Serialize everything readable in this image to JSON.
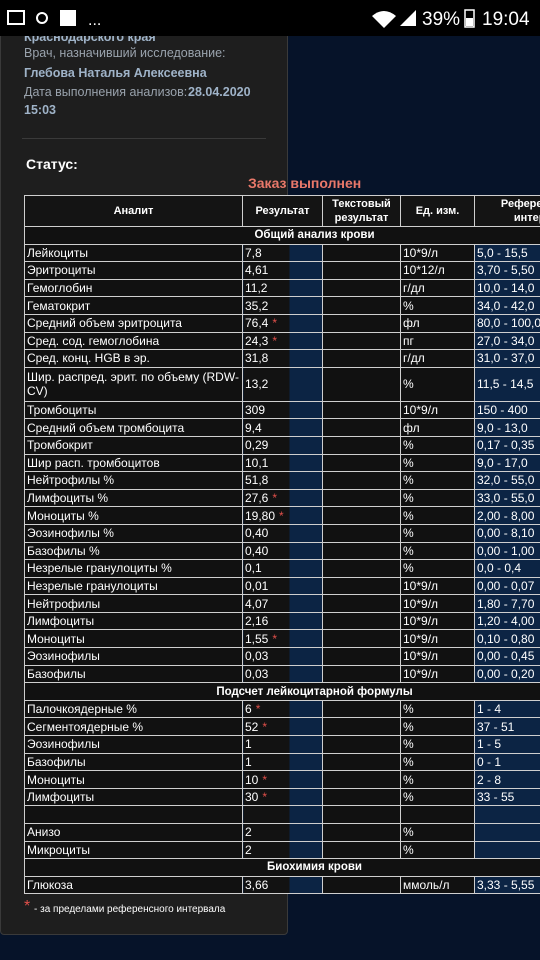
{
  "status_bar": {
    "battery": "39%",
    "time": "19:04"
  },
  "header": {
    "region": "Краснодарского края",
    "doctor_label": "Врач, назначивший исследование:",
    "doctor_name": "Глебова Наталья Алексеевна",
    "date_label": "Дата выполнения анализов:",
    "date_value": "28.04.2020",
    "time_value": "15:03"
  },
  "status": {
    "label": "Статус:",
    "value": "Заказ выполнен"
  },
  "table": {
    "headers": [
      "Аналит",
      "Результат",
      "Текстовый результат",
      "Ед. изм.",
      "Референсный интервал"
    ],
    "sections": [
      {
        "title": "Общий анализ крови",
        "rows": [
          {
            "name": "Лейкоциты",
            "result": "7,8",
            "unit": "10*9/л",
            "ref": "5,0 - 15,5"
          },
          {
            "name": "Эритроциты",
            "result": "4,61",
            "unit": "10*12/л",
            "ref": "3,70 - 5,50"
          },
          {
            "name": "Гемоглобин",
            "result": "11,2",
            "unit": "г/дл",
            "ref": "10,0 - 14,0"
          },
          {
            "name": "Гематокрит",
            "result": "35,2",
            "unit": "%",
            "ref": "34,0 - 42,0"
          },
          {
            "name": "Средний объем эритроцита",
            "result": "76,4",
            "flag": "*",
            "unit": "фл",
            "ref": "80,0 - 100,0"
          },
          {
            "name": "Сред. сод. гемоглобина",
            "result": "24,3",
            "flag": "*",
            "unit": "пг",
            "ref": "27,0 - 34,0"
          },
          {
            "name": "Сред. конц. HGB в эр.",
            "result": "31,8",
            "unit": "г/дл",
            "ref": "31,0 - 37,0"
          },
          {
            "name": "Шир. распред. эрит. по объему (RDW-CV)",
            "result": "13,2",
            "unit": "%",
            "ref": "11,5 - 14,5"
          },
          {
            "name": "Тромбоциты",
            "result": "309",
            "unit": "10*9/л",
            "ref": "150 - 400"
          },
          {
            "name": "Средний объем тромбоцита",
            "result": "9,4",
            "unit": "фл",
            "ref": "9,0 - 13,0"
          },
          {
            "name": "Тромбокрит",
            "result": "0,29",
            "unit": "%",
            "ref": "0,17 - 0,35"
          },
          {
            "name": "Шир расп. тромбоцитов",
            "result": "10,1",
            "unit": "%",
            "ref": "9,0 - 17,0"
          },
          {
            "name": "Нейтрофилы %",
            "result": "51,8",
            "unit": "%",
            "ref": "32,0 - 55,0"
          },
          {
            "name": "Лимфоциты %",
            "result": "27,6",
            "flag": "*",
            "unit": "%",
            "ref": "33,0 - 55,0"
          },
          {
            "name": "Моноциты %",
            "result": "19,80",
            "flag": "*",
            "unit": "%",
            "ref": "2,00 - 8,00"
          },
          {
            "name": "Эозинофилы %",
            "result": "0,40",
            "unit": "%",
            "ref": "0,00 - 8,10"
          },
          {
            "name": "Базофилы %",
            "result": "0,40",
            "unit": "%",
            "ref": "0,00 - 1,00"
          },
          {
            "name": "Незрелые гранулоциты %",
            "result": "0,1",
            "unit": "%",
            "ref": "0,0 - 0,4"
          },
          {
            "name": "Незрелые гранулоциты",
            "result": "0,01",
            "unit": "10*9/л",
            "ref": "0,00 - 0,07"
          },
          {
            "name": "Нейтрофилы",
            "result": "4,07",
            "unit": "10*9/л",
            "ref": "1,80 - 7,70"
          },
          {
            "name": "Лимфоциты",
            "result": "2,16",
            "unit": "10*9/л",
            "ref": "1,20 - 4,00"
          },
          {
            "name": "Моноциты",
            "result": "1,55",
            "flag": "*",
            "unit": "10*9/л",
            "ref": "0,10 - 0,80"
          },
          {
            "name": "Эозинофилы",
            "result": "0,03",
            "unit": "10*9/л",
            "ref": "0,00 - 0,45"
          },
          {
            "name": "Базофилы",
            "result": "0,03",
            "unit": "10*9/л",
            "ref": "0,00 - 0,20"
          }
        ]
      },
      {
        "title": "Подсчет лейкоцитарной формулы",
        "rows": [
          {
            "name": "Палочкоядерные %",
            "result": "6",
            "flag": "*",
            "unit": "%",
            "ref": "1 - 4"
          },
          {
            "name": "Сегментоядерные %",
            "result": "52",
            "flag": "*",
            "unit": "%",
            "ref": "37 - 51"
          },
          {
            "name": "Эозинофилы",
            "result": "1",
            "unit": "%",
            "ref": "1 - 5"
          },
          {
            "name": "Базофилы",
            "result": "1",
            "unit": "%",
            "ref": "0 - 1"
          },
          {
            "name": "Моноциты",
            "result": "10",
            "flag": "*",
            "unit": "%",
            "ref": "2 - 8"
          },
          {
            "name": "Лимфоциты",
            "result": "30",
            "flag": "*",
            "unit": "%",
            "ref": "33 - 55"
          }
        ]
      },
      {
        "rows": [
          {
            "name": "Анизо",
            "result": "2",
            "unit": "%"
          },
          {
            "name": "Микроциты",
            "result": "2",
            "unit": "%"
          }
        ]
      },
      {
        "title": "Биохимия крови",
        "rows": [
          {
            "name": "Глюкоза",
            "result": "3,66",
            "unit": "ммоль/л",
            "ref": "3,33 - 5,55"
          }
        ]
      }
    ]
  },
  "footnote": {
    "mark": "*",
    "text": "- за пределами референсного интервала"
  }
}
